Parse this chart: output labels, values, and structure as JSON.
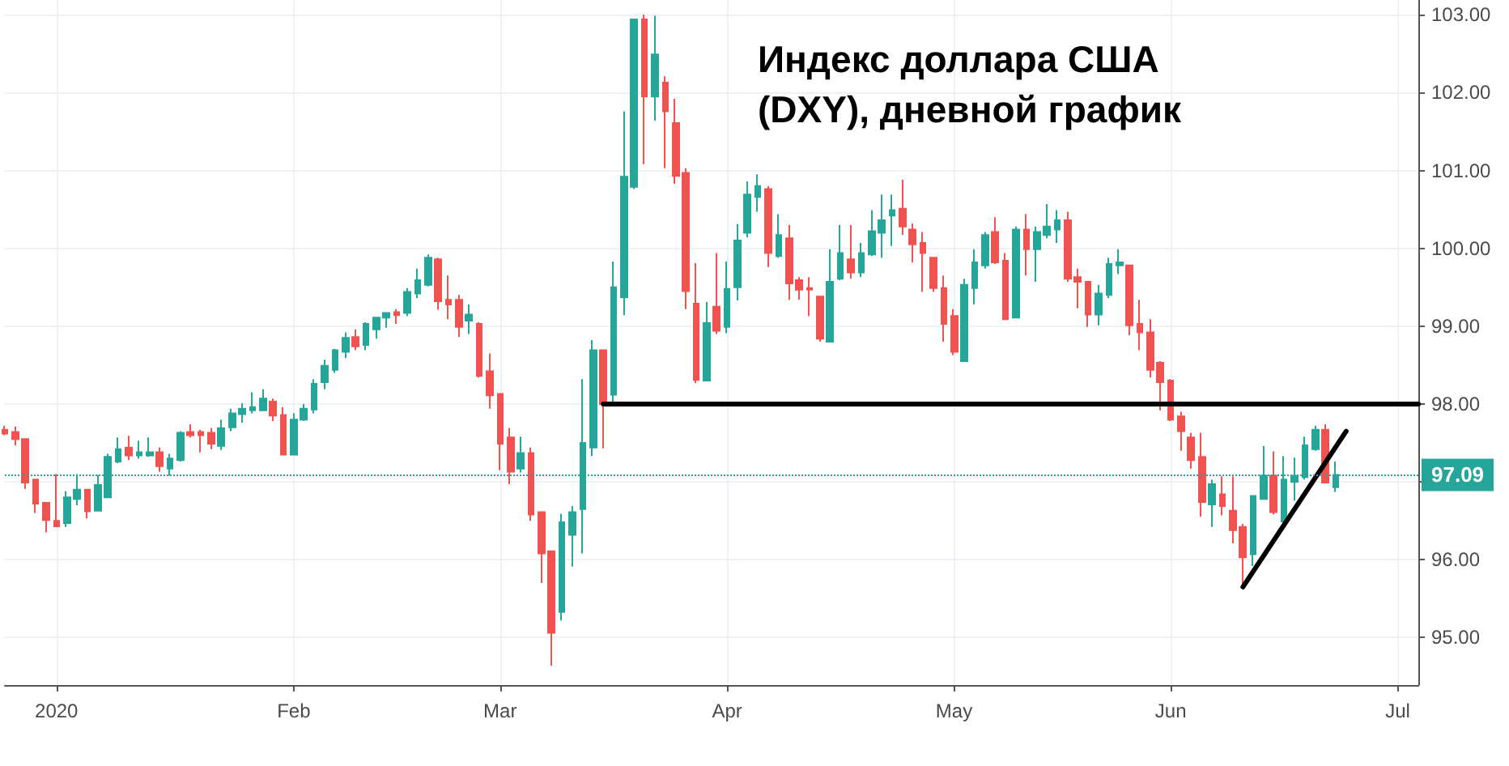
{
  "chart_data": {
    "type": "candlestick",
    "title": "Индекс доллара США (DXY), дневной график",
    "categories": [
      null,
      null,
      null,
      null,
      null,
      "2020",
      null,
      null,
      null,
      null,
      null,
      null,
      null,
      null,
      null,
      null,
      null,
      null,
      null,
      null,
      null,
      null,
      null,
      null,
      null,
      null,
      null,
      null,
      "Feb",
      null,
      null,
      null,
      null,
      null,
      null,
      null,
      null,
      null,
      null,
      null,
      null,
      null,
      null,
      null,
      null,
      null,
      null,
      null,
      "Mar",
      null,
      null,
      null,
      null,
      null,
      null,
      null,
      null,
      null,
      null,
      null,
      null,
      null,
      null,
      null,
      null,
      null,
      null,
      null,
      null,
      null,
      "Apr",
      null,
      null,
      null,
      null,
      null,
      null,
      null,
      null,
      null,
      null,
      null,
      null,
      null,
      null,
      null,
      null,
      null,
      null,
      null,
      null,
      null,
      "May",
      null,
      null,
      null,
      null,
      null,
      null,
      null,
      null,
      null,
      null,
      null,
      null,
      null,
      null,
      null,
      null,
      null,
      null,
      null,
      null,
      "Jun",
      null,
      null,
      null,
      null,
      null,
      null,
      null,
      null,
      null,
      null,
      null,
      null,
      null,
      null,
      null,
      null,
      null,
      null,
      null,
      null,
      null,
      "Jul",
      null,
      null
    ],
    "series": [
      {
        "colors": [
          "#ef5350",
          "#ef5350",
          "#ef5350",
          "#ef5350",
          "#ef5350",
          "#ef5350",
          "#26a69a",
          "#26a69a",
          "#ef5350",
          "#26a69a",
          "#26a69a",
          "#26a69a",
          "#ef5350",
          "#26a69a",
          "#26a69a",
          "#ef5350",
          "#26a69a",
          "#26a69a",
          "#ef5350",
          "#ef5350",
          "#ef5350",
          "#26a69a",
          "#26a69a",
          "#26a69a",
          "#26a69a",
          "#26a69a",
          "#ef5350",
          "#ef5350",
          "#26a69a",
          "#26a69a",
          "#26a69a",
          "#26a69a",
          "#26a69a",
          "#26a69a",
          "#ef5350",
          "#26a69a",
          "#26a69a",
          "#26a69a",
          "#ef5350",
          "#26a69a",
          "#26a69a",
          "#26a69a",
          "#ef5350",
          "#ef5350",
          "#ef5350",
          "#26a69a",
          "#ef5350",
          "#ef5350",
          "#ef5350",
          "#ef5350",
          "#26a69a",
          "#ef5350",
          "#ef5350",
          "#ef5350",
          "#26a69a",
          "#26a69a",
          "#26a69a",
          "#26a69a",
          "#ef5350",
          "#26a69a",
          "#26a69a",
          "#26a69a",
          "#ef5350",
          "#26a69a",
          "#ef5350",
          "#ef5350",
          "#ef5350",
          "#ef5350",
          "#26a69a",
          "#ef5350",
          "#26a69a",
          "#26a69a",
          "#26a69a",
          "#26a69a",
          "#ef5350",
          "#26a69a",
          "#ef5350",
          "#ef5350",
          "#ef5350",
          "#ef5350",
          "#26a69a",
          "#26a69a",
          "#ef5350",
          "#26a69a",
          "#26a69a",
          "#26a69a",
          "#26a69a",
          "#ef5350",
          "#ef5350",
          "#ef5350",
          "#ef5350",
          "#ef5350",
          "#ef5350",
          "#26a69a",
          "#26a69a",
          "#26a69a",
          "#ef5350",
          "#ef5350",
          "#26a69a",
          "#ef5350",
          "#26a69a",
          "#26a69a",
          "#26a69a",
          "#ef5350",
          "#ef5350",
          "#ef5350",
          "#26a69a",
          "#26a69a",
          "#26a69a",
          "#ef5350",
          "#ef5350",
          "#ef5350",
          "#ef5350",
          "#ef5350",
          "#ef5350",
          "#ef5350",
          "#ef5350",
          "#26a69a",
          "#ef5350",
          "#ef5350",
          "#ef5350",
          "#26a69a",
          "#26a69a",
          "#ef5350",
          "#26a69a",
          "#26a69a",
          "#26a69a",
          "#26a69a",
          "#ef5350",
          "#26a69a",
          null,
          null,
          null,
          null,
          null,
          null,
          null,
          null
        ],
        "ohlc": [
          [
            97.67,
            97.72,
            97.6,
            97.62
          ],
          [
            97.64,
            97.71,
            97.47,
            97.55
          ],
          [
            97.55,
            97.55,
            96.91,
            96.99
          ],
          [
            97.03,
            97.03,
            96.6,
            96.72
          ],
          [
            96.73,
            96.73,
            96.35,
            96.51
          ],
          [
            96.5,
            97.1,
            96.42,
            96.43
          ],
          [
            96.47,
            96.88,
            96.42,
            96.8
          ],
          [
            96.78,
            97.1,
            96.7,
            96.9
          ],
          [
            96.9,
            96.9,
            96.53,
            96.62
          ],
          [
            96.63,
            97.09,
            96.62,
            96.96
          ],
          [
            96.8,
            97.36,
            96.8,
            97.32
          ],
          [
            97.26,
            97.57,
            97.24,
            97.42
          ],
          [
            97.44,
            97.59,
            97.28,
            97.34
          ],
          [
            97.34,
            97.53,
            97.3,
            97.38
          ],
          [
            97.34,
            97.57,
            97.32,
            97.38
          ],
          [
            97.38,
            97.44,
            97.13,
            97.2
          ],
          [
            97.17,
            97.36,
            97.08,
            97.3
          ],
          [
            97.28,
            97.65,
            97.26,
            97.63
          ],
          [
            97.64,
            97.74,
            97.57,
            97.6
          ],
          [
            97.64,
            97.67,
            97.38,
            97.6
          ],
          [
            97.63,
            97.69,
            97.42,
            97.49
          ],
          [
            97.46,
            97.8,
            97.41,
            97.69
          ],
          [
            97.7,
            97.94,
            97.65,
            97.88
          ],
          [
            97.87,
            98.01,
            97.76,
            97.94
          ],
          [
            97.92,
            98.15,
            97.88,
            97.96
          ],
          [
            97.92,
            98.19,
            97.92,
            98.07
          ],
          [
            98.03,
            98.07,
            97.78,
            97.85
          ],
          [
            97.86,
            97.96,
            97.35,
            97.35
          ],
          [
            97.35,
            97.88,
            97.35,
            97.8
          ],
          [
            97.8,
            98.0,
            97.78,
            97.94
          ],
          [
            97.93,
            98.32,
            97.88,
            98.26
          ],
          [
            98.28,
            98.57,
            98.19,
            98.49
          ],
          [
            98.44,
            98.71,
            98.4,
            98.69
          ],
          [
            98.67,
            98.92,
            98.59,
            98.85
          ],
          [
            98.86,
            98.96,
            98.69,
            98.74
          ],
          [
            98.76,
            99.05,
            98.69,
            99.03
          ],
          [
            98.96,
            99.11,
            98.84,
            99.11
          ],
          [
            99.11,
            99.17,
            98.98,
            99.17
          ],
          [
            99.18,
            99.22,
            99.03,
            99.14
          ],
          [
            99.17,
            99.49,
            99.13,
            99.44
          ],
          [
            99.42,
            99.74,
            99.36,
            99.59
          ],
          [
            99.53,
            99.92,
            99.51,
            99.88
          ],
          [
            99.86,
            99.88,
            99.21,
            99.32
          ],
          [
            99.34,
            99.65,
            99.09,
            99.28
          ],
          [
            99.34,
            99.4,
            98.86,
            98.99
          ],
          [
            99.07,
            99.28,
            98.9,
            99.15
          ],
          [
            99.03,
            99.05,
            98.34,
            98.36
          ],
          [
            98.42,
            98.65,
            97.94,
            98.11
          ],
          [
            98.13,
            98.13,
            97.15,
            97.49
          ],
          [
            97.57,
            97.69,
            96.97,
            97.13
          ],
          [
            97.17,
            97.58,
            97.12,
            97.37
          ],
          [
            97.37,
            97.44,
            96.5,
            96.58
          ],
          [
            96.61,
            96.61,
            95.7,
            96.08
          ],
          [
            96.11,
            96.11,
            94.64,
            95.06
          ],
          [
            95.33,
            96.59,
            95.22,
            96.48
          ],
          [
            96.32,
            96.69,
            95.91,
            96.61
          ],
          [
            96.65,
            98.32,
            96.08,
            97.5
          ],
          [
            97.44,
            98.82,
            97.33,
            98.69
          ],
          [
            98.69,
            98.69,
            97.43,
            98.0
          ],
          [
            98.12,
            99.83,
            98.02,
            99.5
          ],
          [
            99.37,
            101.76,
            99.14,
            100.92
          ],
          [
            100.79,
            102.94,
            100.76,
            102.94
          ],
          [
            102.94,
            103.0,
            101.08,
            101.95
          ],
          [
            101.95,
            102.99,
            101.64,
            102.49
          ],
          [
            102.13,
            102.21,
            101.03,
            101.76
          ],
          [
            101.61,
            101.92,
            100.83,
            100.93
          ],
          [
            100.97,
            101.03,
            99.22,
            99.45
          ],
          [
            99.29,
            99.81,
            98.27,
            98.31
          ],
          [
            98.3,
            99.31,
            98.29,
            99.04
          ],
          [
            99.25,
            99.94,
            98.9,
            98.94
          ],
          [
            98.99,
            99.83,
            98.91,
            99.48
          ],
          [
            99.5,
            100.31,
            99.33,
            100.1
          ],
          [
            100.2,
            100.86,
            100.14,
            100.69
          ],
          [
            100.66,
            100.95,
            100.47,
            100.8
          ],
          [
            100.76,
            100.8,
            99.76,
            99.94
          ],
          [
            99.9,
            100.44,
            99.88,
            100.17
          ],
          [
            100.13,
            100.3,
            99.34,
            99.55
          ],
          [
            99.59,
            99.63,
            99.34,
            99.47
          ],
          [
            99.49,
            99.63,
            99.13,
            99.47
          ],
          [
            99.38,
            99.38,
            98.8,
            98.84
          ],
          [
            98.8,
            99.99,
            98.8,
            99.57
          ],
          [
            99.61,
            100.3,
            99.59,
            99.94
          ],
          [
            99.86,
            100.3,
            99.61,
            99.69
          ],
          [
            99.69,
            100.07,
            99.63,
            99.94
          ],
          [
            99.92,
            100.49,
            99.9,
            100.22
          ],
          [
            100.2,
            100.69,
            99.88,
            100.36
          ],
          [
            100.42,
            100.69,
            100.03,
            100.49
          ],
          [
            100.51,
            100.88,
            100.17,
            100.28
          ],
          [
            100.24,
            100.32,
            99.82,
            100.05
          ],
          [
            100.07,
            100.21,
            99.44,
            99.94
          ],
          [
            99.88,
            99.88,
            99.44,
            99.49
          ],
          [
            99.49,
            99.65,
            98.8,
            99.03
          ],
          [
            99.13,
            99.22,
            98.63,
            98.67
          ],
          [
            98.55,
            99.61,
            98.55,
            99.53
          ],
          [
            99.49,
            99.99,
            99.28,
            99.82
          ],
          [
            99.78,
            100.21,
            99.74,
            100.17
          ],
          [
            100.21,
            100.4,
            99.8,
            99.82
          ],
          [
            99.84,
            99.94,
            99.09,
            99.09
          ],
          [
            99.11,
            100.28,
            99.11,
            100.24
          ],
          [
            100.24,
            100.44,
            99.65,
            99.99
          ],
          [
            99.99,
            100.28,
            99.57,
            100.21
          ],
          [
            100.17,
            100.57,
            100.13,
            100.28
          ],
          [
            100.24,
            100.49,
            100.07,
            100.36
          ],
          [
            100.36,
            100.47,
            99.57,
            99.61
          ],
          [
            99.63,
            99.74,
            99.23,
            99.57
          ],
          [
            99.57,
            99.57,
            98.99,
            99.15
          ],
          [
            99.15,
            99.53,
            99.01,
            99.42
          ],
          [
            99.4,
            99.88,
            99.36,
            99.8
          ],
          [
            99.78,
            99.99,
            99.67,
            99.82
          ],
          [
            99.78,
            99.78,
            98.88,
            99.01
          ],
          [
            99.03,
            99.34,
            98.69,
            98.92
          ],
          [
            98.92,
            99.09,
            98.34,
            98.44
          ],
          [
            98.53,
            98.55,
            97.92,
            98.28
          ],
          [
            98.3,
            98.32,
            97.78,
            97.8
          ],
          [
            97.84,
            97.9,
            97.4,
            97.65
          ],
          [
            97.57,
            97.63,
            97.17,
            97.28
          ],
          [
            97.32,
            97.63,
            96.55,
            96.74
          ],
          [
            96.71,
            97.03,
            96.42,
            96.97
          ],
          [
            96.84,
            97.07,
            96.57,
            96.69
          ],
          [
            96.63,
            97.07,
            96.21,
            96.38
          ],
          [
            96.42,
            96.46,
            95.69,
            96.03
          ],
          [
            96.07,
            96.82,
            95.92,
            96.82
          ],
          [
            96.78,
            97.46,
            96.78,
            97.08
          ],
          [
            97.08,
            97.39,
            96.58,
            96.61
          ],
          [
            96.49,
            97.33,
            96.46,
            97.03
          ],
          [
            97.0,
            97.31,
            96.76,
            97.08
          ],
          [
            97.06,
            97.58,
            97.03,
            97.47
          ],
          [
            97.42,
            97.72,
            97.4,
            97.67
          ],
          [
            97.67,
            97.74,
            96.99,
            96.99
          ],
          [
            96.93,
            97.26,
            96.87,
            97.09
          ],
          null,
          null,
          null,
          null,
          null,
          null,
          null,
          null
        ]
      },
      {
        "type": "line",
        "color": "#000000",
        "values": [
          null,
          null,
          null,
          null,
          null,
          null,
          null,
          null,
          null,
          null,
          null,
          null,
          null,
          null,
          null,
          null,
          null,
          null,
          null,
          null,
          null,
          null,
          null,
          null,
          null,
          null,
          null,
          null,
          null,
          null,
          null,
          null,
          null,
          null,
          null,
          null,
          null,
          null,
          null,
          null,
          null,
          null,
          null,
          null,
          null,
          null,
          null,
          null,
          null,
          null,
          null,
          null,
          null,
          null,
          null,
          null,
          null,
          null,
          98,
          98,
          98,
          98,
          98,
          98,
          98,
          98,
          98,
          98,
          98,
          98,
          98,
          98,
          98,
          98,
          98,
          98,
          98,
          98,
          98,
          98,
          98,
          98,
          98,
          98,
          98,
          98,
          98,
          98,
          98,
          98,
          98,
          98,
          98,
          98,
          98,
          98,
          98,
          98,
          98,
          98,
          98,
          98,
          98,
          98,
          98,
          98,
          98,
          98,
          98,
          98,
          98,
          98,
          98,
          98,
          98,
          98,
          98,
          98,
          98,
          98,
          98,
          98,
          98,
          98,
          98,
          98,
          98,
          98,
          98,
          98,
          98,
          98,
          98,
          98,
          98,
          98,
          98,
          98
        ]
      },
      {
        "type": "line",
        "color": "#000000",
        "values": [
          null,
          null,
          null,
          null,
          null,
          null,
          null,
          null,
          null,
          null,
          null,
          null,
          null,
          null,
          null,
          null,
          null,
          null,
          null,
          null,
          null,
          null,
          null,
          null,
          null,
          null,
          null,
          null,
          null,
          null,
          null,
          null,
          null,
          null,
          null,
          null,
          null,
          null,
          null,
          null,
          null,
          null,
          null,
          null,
          null,
          null,
          null,
          null,
          null,
          null,
          null,
          null,
          null,
          null,
          null,
          null,
          null,
          null,
          null,
          null,
          null,
          null,
          null,
          null,
          null,
          null,
          null,
          null,
          null,
          null,
          null,
          null,
          null,
          null,
          null,
          null,
          null,
          null,
          null,
          null,
          null,
          null,
          null,
          null,
          null,
          null,
          null,
          null,
          null,
          null,
          null,
          null,
          null,
          null,
          null,
          null,
          null,
          null,
          null,
          null,
          null,
          null,
          null,
          null,
          null,
          null,
          null,
          null,
          null,
          null,
          null,
          null,
          null,
          null,
          null,
          null,
          null,
          null,
          null,
          null,
          95.65,
          null,
          null,
          null,
          null,
          null,
          null,
          null,
          null,
          null,
          97.65,
          null,
          null,
          null,
          null,
          null,
          null,
          null
        ]
      }
    ],
    "ylim": [
      94.39,
      103.19
    ],
    "yticks": [
      {
        "value": 95,
        "label": "95.00"
      },
      {
        "value": 96,
        "label": "96.00"
      },
      {
        "value": 97,
        "label": null
      },
      {
        "value": 98,
        "label": "98.00"
      },
      {
        "value": 99,
        "label": "99.00"
      },
      {
        "value": 100,
        "label": "100.00"
      },
      {
        "value": 101,
        "label": "101.00"
      },
      {
        "value": 102,
        "label": "102.00"
      },
      {
        "value": 103,
        "label": "103.00"
      }
    ],
    "ref_lines": [
      {
        "axis": "y",
        "value": 97.09,
        "label": "97.09",
        "color": "#26a69a",
        "line_style": "dotted"
      }
    ],
    "grid": true,
    "marker": "none"
  }
}
